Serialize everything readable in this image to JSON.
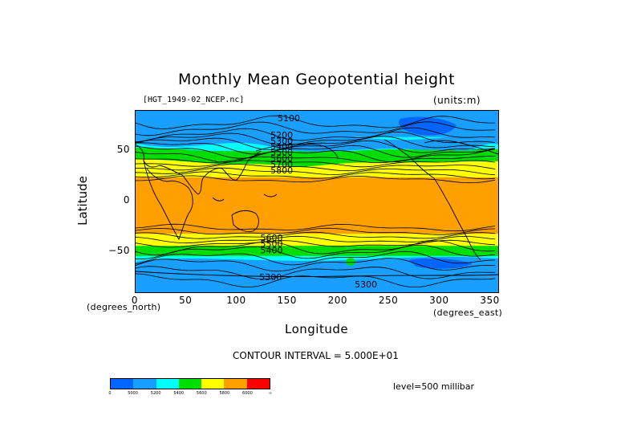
{
  "chart_data": {
    "type": "heatmap",
    "title": "Monthly Mean Geopotential height",
    "file_label": "[HGT_1949-02_NCEP.nc]",
    "units_label": "(units:m)",
    "xlabel": "Longitude",
    "ylabel": "Latitude",
    "x_unit_label": "(degrees_east)",
    "y_unit_label": "(degrees_north)",
    "xlim": [
      0,
      357.5
    ],
    "ylim": [
      -90,
      90
    ],
    "x_ticks": [
      "0",
      "50",
      "100",
      "150",
      "200",
      "250",
      "300",
      "350"
    ],
    "x_tick_values": [
      0,
      50,
      100,
      150,
      200,
      250,
      300,
      350
    ],
    "y_ticks": [
      "50",
      "0",
      "−50"
    ],
    "y_tick_values": [
      50,
      0,
      -50
    ],
    "contour_interval_label": "CONTOUR INTERVAL = 5.000E+01",
    "level_label": "level=500 millibar",
    "contour_labels": [
      "5100",
      "5200",
      "5300",
      "5400",
      "5500",
      "5600",
      "5700",
      "5800",
      "5300",
      "5300",
      "5600",
      "5500",
      "5400"
    ],
    "colorbar": {
      "colors": [
        "#0066ff",
        "#199fff",
        "#00ffff",
        "#00dd00",
        "#ffff00",
        "#ff9f00",
        "#ff0000"
      ],
      "labels": [
        "0",
        "5000",
        "5200",
        "5400",
        "5600",
        "5800",
        "6000",
        "∞"
      ]
    },
    "latitude_bands": [
      {
        "lat": 90,
        "value": 5100
      },
      {
        "lat": 70,
        "value": 5150
      },
      {
        "lat": 60,
        "value": 5250
      },
      {
        "lat": 50,
        "value": 5400
      },
      {
        "lat": 40,
        "value": 5600
      },
      {
        "lat": 30,
        "value": 5750
      },
      {
        "lat": 20,
        "value": 5850
      },
      {
        "lat": 0,
        "value": 5870
      },
      {
        "lat": -20,
        "value": 5860
      },
      {
        "lat": -30,
        "value": 5820
      },
      {
        "lat": -40,
        "value": 5680
      },
      {
        "lat": -50,
        "value": 5450
      },
      {
        "lat": -60,
        "value": 5250
      },
      {
        "lat": -70,
        "value": 5150
      },
      {
        "lat": -90,
        "value": 5050
      }
    ]
  }
}
